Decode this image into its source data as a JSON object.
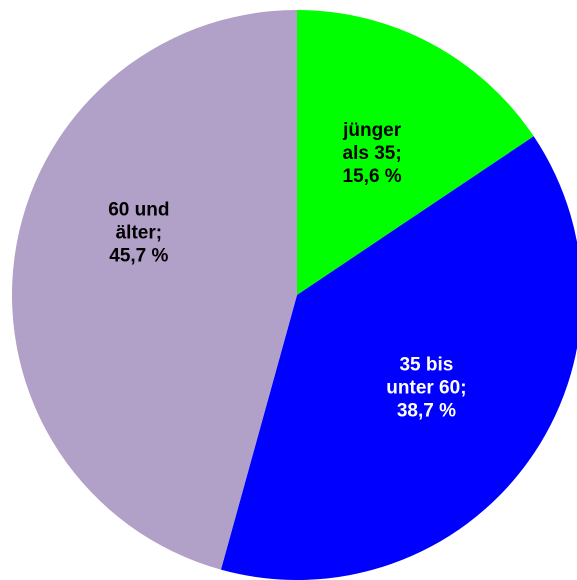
{
  "chart_data": {
    "type": "pie",
    "categories": [
      "jünger als 35;",
      "35 bis unter 60;",
      "60 und älter;"
    ],
    "values": [
      15.6,
      38.7,
      45.7
    ],
    "value_labels": [
      "15,6 %",
      "38,7 %",
      "45,7 %"
    ],
    "colors": [
      "#00ff00",
      "#0000ff",
      "#b1a0c7"
    ],
    "label_colors": [
      "#000000",
      "#ffffff",
      "#000000"
    ]
  }
}
